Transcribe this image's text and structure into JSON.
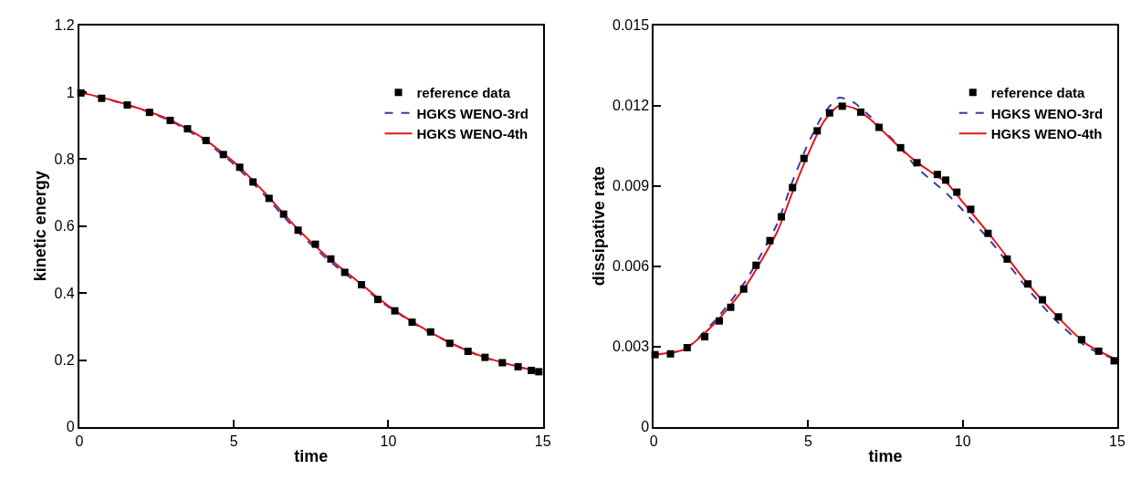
{
  "chart_data": [
    {
      "type": "line",
      "xlabel": "time",
      "ylabel": "kinetic energy",
      "xlim": [
        0,
        15
      ],
      "xticks": [
        0,
        5,
        10,
        15
      ],
      "ylim": [
        0,
        1.2
      ],
      "yticks": [
        0,
        0.2,
        0.4,
        0.6,
        0.8,
        1,
        1.2
      ],
      "grid": false,
      "legend": "top right",
      "series": [
        {
          "name": "reference data",
          "type": "scatter",
          "marker": "square",
          "color": "#000000",
          "x": [
            0.05,
            0.72,
            1.55,
            2.27,
            2.94,
            3.5,
            4.1,
            4.66,
            5.19,
            5.62,
            6.14,
            6.61,
            7.08,
            7.64,
            8.14,
            8.59,
            9.13,
            9.66,
            10.21,
            10.77,
            11.37,
            11.99,
            12.58,
            13.13,
            13.69,
            14.2,
            14.63,
            14.87
          ],
          "values": [
            0.998,
            0.982,
            0.962,
            0.94,
            0.916,
            0.891,
            0.856,
            0.814,
            0.776,
            0.732,
            0.683,
            0.636,
            0.588,
            0.546,
            0.502,
            0.462,
            0.425,
            0.381,
            0.347,
            0.313,
            0.284,
            0.25,
            0.226,
            0.208,
            0.192,
            0.18,
            0.169,
            0.165
          ]
        },
        {
          "name": "HGKS WENO-3rd",
          "line_style": "dashed",
          "marker": "none",
          "color": "#3b3b9c",
          "x": [
            0,
            1,
            2,
            3,
            4,
            5,
            6,
            7,
            8,
            9,
            10,
            11,
            12,
            13,
            14,
            15
          ],
          "values": [
            1.0,
            0.977,
            0.949,
            0.912,
            0.858,
            0.785,
            0.692,
            0.59,
            0.503,
            0.43,
            0.359,
            0.3,
            0.251,
            0.211,
            0.184,
            0.162
          ]
        },
        {
          "name": "HGKS WENO-4th",
          "line_style": "solid",
          "marker": "none",
          "color": "#e3161c",
          "x": [
            0,
            1,
            2,
            3,
            4,
            5,
            6,
            7,
            8,
            9,
            10,
            11,
            12,
            13,
            14,
            15
          ],
          "values": [
            1.0,
            0.978,
            0.95,
            0.915,
            0.863,
            0.792,
            0.7,
            0.598,
            0.51,
            0.436,
            0.362,
            0.302,
            0.252,
            0.212,
            0.185,
            0.162
          ]
        }
      ]
    },
    {
      "type": "line",
      "xlabel": "time",
      "ylabel": "dissipative rate",
      "xlim": [
        0,
        15
      ],
      "xticks": [
        0,
        5,
        10,
        15
      ],
      "ylim": [
        0,
        0.015
      ],
      "yticks": [
        0,
        0.003,
        0.006,
        0.009,
        0.012,
        0.015
      ],
      "grid": false,
      "legend": "top right",
      "series": [
        {
          "name": "reference data",
          "type": "scatter",
          "marker": "square",
          "color": "#000000",
          "x": [
            0.04,
            0.54,
            1.08,
            1.65,
            2.12,
            2.49,
            2.91,
            3.31,
            3.76,
            4.13,
            4.49,
            4.86,
            5.29,
            5.69,
            6.1,
            6.7,
            7.29,
            7.99,
            8.52,
            9.18,
            9.45,
            9.81,
            10.26,
            10.82,
            11.44,
            12.11,
            12.58,
            13.1,
            13.85,
            14.4,
            14.9
          ],
          "values": [
            0.0027,
            0.00273,
            0.00296,
            0.00337,
            0.00396,
            0.00447,
            0.00515,
            0.00604,
            0.00696,
            0.00785,
            0.00894,
            0.01003,
            0.01106,
            0.01173,
            0.01198,
            0.01176,
            0.01119,
            0.01043,
            0.00987,
            0.00943,
            0.00922,
            0.00877,
            0.00813,
            0.00723,
            0.00627,
            0.00534,
            0.00475,
            0.00411,
            0.00326,
            0.00283,
            0.00247
          ]
        },
        {
          "name": "HGKS WENO-3rd",
          "line_style": "dashed",
          "marker": "none",
          "color": "#3b3b9c",
          "x": [
            0,
            1,
            2,
            3,
            4,
            4.5,
            5,
            5.5,
            6,
            6.5,
            7,
            8,
            8.5,
            9,
            9.5,
            10,
            11,
            12,
            13,
            14,
            15
          ],
          "values": [
            0.0027,
            0.0029,
            0.004,
            0.0055,
            0.0076,
            0.0092,
            0.0106,
            0.0117,
            0.0123,
            0.0121,
            0.0116,
            0.0104,
            0.0097,
            0.0092,
            0.0087,
            0.0081,
            0.0068,
            0.0053,
            0.004,
            0.003,
            0.0025
          ]
        },
        {
          "name": "HGKS WENO-4th",
          "line_style": "solid",
          "marker": "none",
          "color": "#e3161c",
          "x": [
            0,
            1,
            2,
            3,
            4,
            4.5,
            5,
            5.5,
            6,
            6.5,
            7,
            8,
            8.5,
            9,
            9.5,
            10,
            11,
            12,
            13,
            14,
            15
          ],
          "values": [
            0.0027,
            0.0029,
            0.0039,
            0.0053,
            0.0073,
            0.0088,
            0.0102,
            0.0114,
            0.012,
            0.0119,
            0.0115,
            0.0104,
            0.0099,
            0.0095,
            0.0091,
            0.0084,
            0.007,
            0.0055,
            0.0042,
            0.0031,
            0.0025
          ]
        }
      ]
    }
  ]
}
